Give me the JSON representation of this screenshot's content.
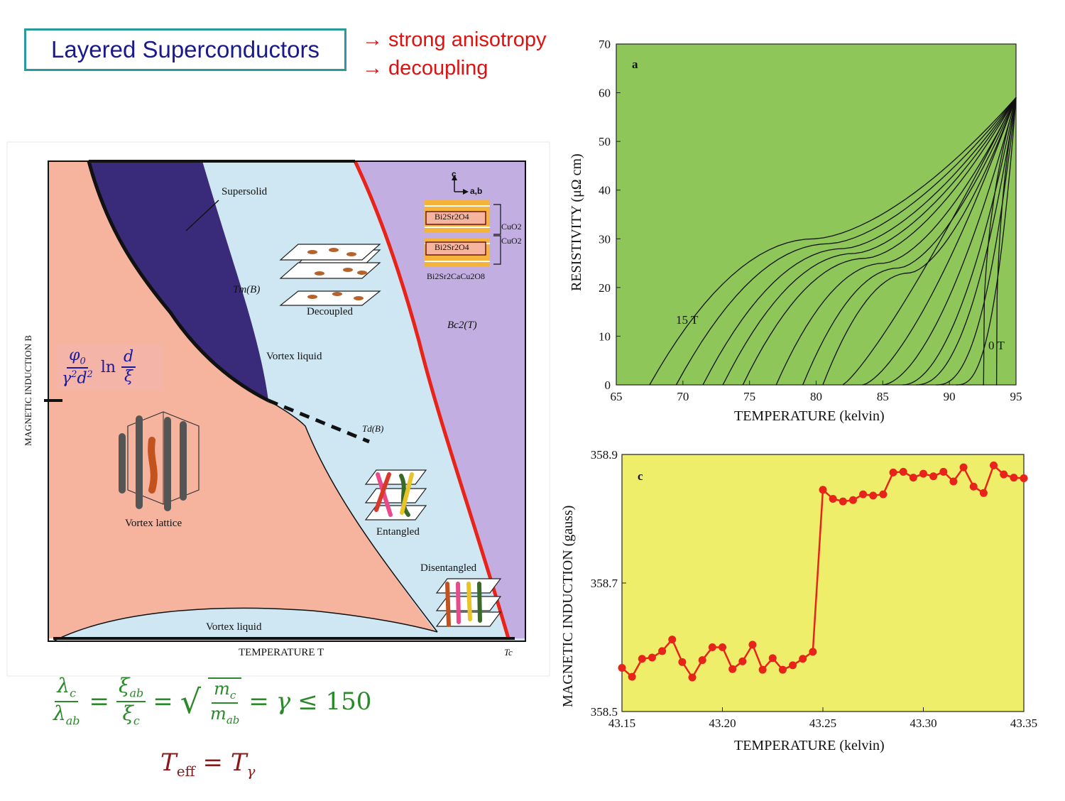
{
  "header": {
    "title": "Layered Superconductors",
    "bullets": [
      "→ strong anisotropy",
      "→ decoupling"
    ]
  },
  "phase_diagram": {
    "y_axis_label": "MAGNETIC INDUCTION B",
    "x_axis_label": "TEMPERATURE T",
    "tc_label": "Tc",
    "regions": {
      "supersolid": "Supersolid",
      "vortex_liquid_upper": "Vortex liquid",
      "vortex_lattice": "Vortex lattice",
      "vortex_liquid_lower": "Vortex liquid",
      "decoupled": "Decoupled",
      "entangled": "Entangled",
      "disentangled": "Disentangled"
    },
    "curves": {
      "melting": "Tm(B)",
      "decoupling": "Td(B)",
      "upper_critical": "Bc2(T)"
    },
    "crystal": {
      "axis_c": "c",
      "axis_ab": "a,b",
      "layer1": "Bi2Sr2O4",
      "layer2": "Bi2Sr2O4",
      "cuo2_a": "CuO2",
      "cuo2_b": "CuO2",
      "compound": "Bi2Sr2CaCu2O8"
    },
    "colors": {
      "lattice": "#f6b49e",
      "liquid": "#cfe7f3",
      "supersolid": "#3a2a7a",
      "normal": "#c2aee0",
      "bc2_line": "#e8231a"
    }
  },
  "equations": {
    "field_scale": "φ0 / (γ² d²) ln (d/ξ)",
    "anisotropy": "λc/λab = ξab/ξc = √(mc/mab) = γ ≤ 150",
    "teff": "Teff = Tγ"
  },
  "chart_data": [
    {
      "type": "line",
      "panel_label": "a",
      "xlabel": "TEMPERATURE (kelvin)",
      "ylabel": "RESISTIVITY (μΩ cm)",
      "xlim": [
        65,
        95
      ],
      "ylim": [
        0,
        70
      ],
      "xticks": [
        65,
        70,
        75,
        80,
        85,
        90,
        95
      ],
      "yticks": [
        0,
        10,
        20,
        30,
        40,
        50,
        60,
        70
      ],
      "annotations": [
        "15 T",
        "0 T"
      ],
      "background": "#8fc65a",
      "series_onsets": [
        67.5,
        69.5,
        71.5,
        73,
        74.5,
        77,
        79,
        80.5,
        82,
        83.5,
        85,
        86.5,
        87.5,
        89,
        90.5,
        92.5,
        93.5
      ],
      "series_top": 59
    },
    {
      "type": "line",
      "panel_label": "c",
      "xlabel": "TEMPERATURE (kelvin)",
      "ylabel": "MAGNETIC INDUCTION (gauss)",
      "xlim": [
        43.15,
        43.35
      ],
      "ylim": [
        358.5,
        358.9
      ],
      "xticks": [
        "43.15",
        "43.20",
        "43.25",
        "43.30",
        "43.35"
      ],
      "yticks": [
        "358.5",
        "358.7",
        "358.9"
      ],
      "background": "#eeee6a",
      "series": [
        {
          "x": [
            43.15,
            43.155,
            43.16,
            43.165,
            43.17,
            43.175,
            43.18,
            43.185,
            43.19,
            43.195,
            43.2,
            43.205,
            43.21,
            43.215,
            43.22,
            43.225,
            43.23,
            43.235,
            43.24,
            43.245,
            43.25,
            43.255,
            43.26,
            43.265,
            43.27,
            43.275,
            43.28,
            43.285,
            43.29,
            43.295,
            43.3,
            43.305,
            43.31,
            43.315,
            43.32,
            43.325,
            43.33,
            43.335,
            43.34,
            43.345,
            43.35
          ],
          "y": [
            358.568,
            358.554,
            358.582,
            358.584,
            358.594,
            358.612,
            358.577,
            358.553,
            358.58,
            358.6,
            358.6,
            358.566,
            358.578,
            358.604,
            358.565,
            358.583,
            358.565,
            358.572,
            358.582,
            358.593,
            358.845,
            358.831,
            358.827,
            358.829,
            358.838,
            358.836,
            358.838,
            358.872,
            358.873,
            358.864,
            358.87,
            358.866,
            358.873,
            358.858,
            358.88,
            358.85,
            358.84,
            358.883,
            358.869,
            358.864,
            358.863
          ]
        }
      ]
    }
  ]
}
